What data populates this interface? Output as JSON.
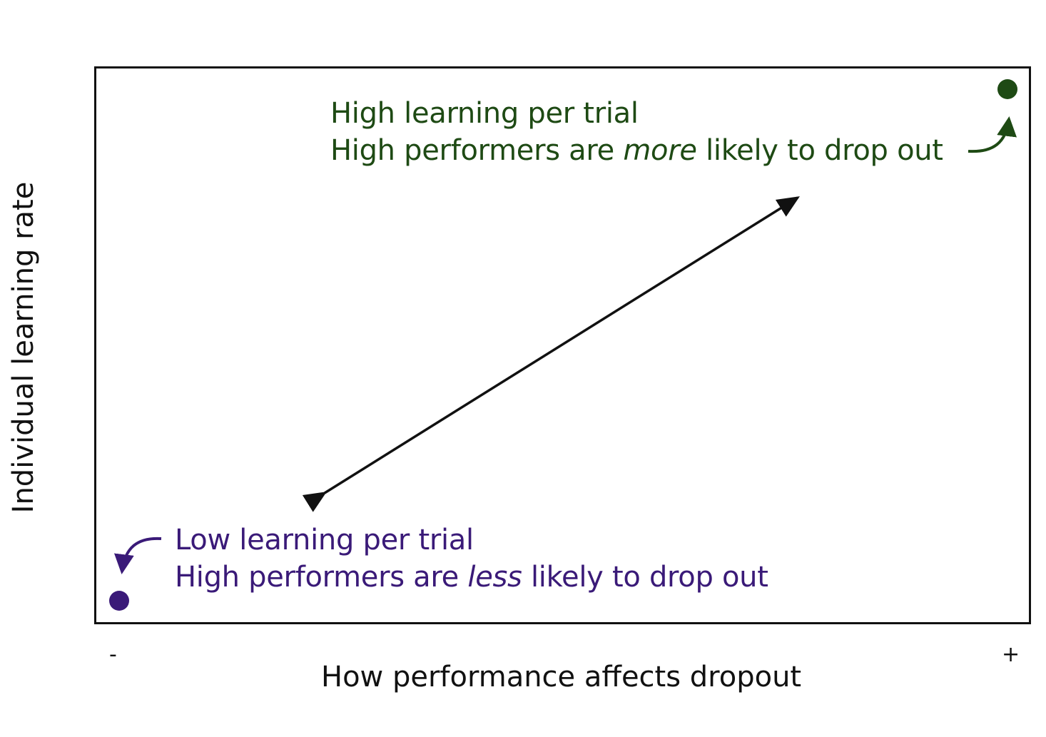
{
  "diagram": {
    "high_label": {
      "line1": "High learning per trial",
      "line2_before": "High performers are ",
      "line2_emph": "more",
      "line2_after": " likely to drop out"
    },
    "low_label": {
      "line1": "Low learning per trial",
      "line2_before": "High performers are ",
      "line2_emph": "less",
      "line2_after": " likely to drop out"
    },
    "x_axis": {
      "title": "How performance affects dropout",
      "tick_low": "-",
      "tick_high": "+"
    },
    "y_axis": {
      "title": "Individual learning rate"
    },
    "colors": {
      "high": "#1e4a14",
      "low": "#3a1a78",
      "frame": "#111111",
      "arrow": "#111111"
    }
  }
}
